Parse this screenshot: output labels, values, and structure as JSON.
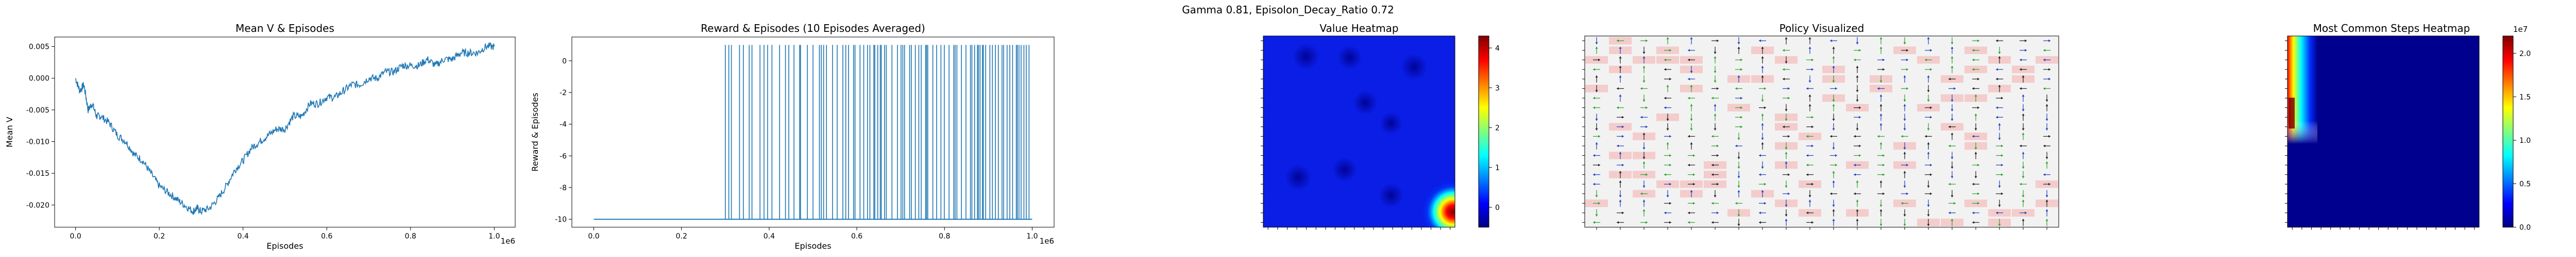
{
  "figure": {
    "suptitle": "Gamma  0.81, Episolon_Decay_Ratio 0.72"
  },
  "colors": {
    "line": "#1f77b4",
    "axes": "#000000",
    "heat_low": "#00007f",
    "heat_high": "#7f0000",
    "policy_highlight": "#f4c2c2",
    "arrow_blue": "#1f3fbf",
    "arrow_black": "#202020",
    "arrow_green": "#2ca02c"
  },
  "chart_data": [
    {
      "type": "line",
      "title": "Mean V & Episodes",
      "xlabel": "Episodes",
      "ylabel": "Mean V",
      "x_scale_label": "1e6",
      "xlim": [
        -0.05,
        1.05
      ],
      "ylim": [
        -0.0235,
        0.0065
      ],
      "xticks": [
        "0.0",
        "0.2",
        "0.4",
        "0.6",
        "0.8",
        "1.0"
      ],
      "yticks": [
        "0.005",
        "0.000",
        "-0.005",
        "-0.010",
        "-0.015",
        "-0.020"
      ],
      "series": [
        {
          "x": [
            0.0,
            0.01,
            0.02,
            0.03,
            0.04,
            0.05,
            0.06,
            0.08,
            0.1,
            0.12,
            0.14,
            0.16,
            0.18,
            0.2,
            0.22,
            0.24,
            0.26,
            0.28,
            0.29,
            0.3,
            0.32,
            0.34,
            0.36,
            0.38,
            0.4,
            0.42,
            0.44,
            0.46,
            0.48,
            0.5,
            0.52,
            0.54,
            0.56,
            0.58,
            0.6,
            0.62,
            0.64,
            0.66,
            0.68,
            0.7,
            0.72,
            0.74,
            0.76,
            0.78,
            0.8,
            0.82,
            0.84,
            0.86,
            0.88,
            0.9,
            0.92,
            0.94,
            0.96,
            0.98,
            1.0
          ],
          "values": [
            0.0,
            -0.002,
            -0.001,
            -0.005,
            -0.004,
            -0.006,
            -0.006,
            -0.007,
            -0.009,
            -0.01,
            -0.012,
            -0.013,
            -0.015,
            -0.017,
            -0.018,
            -0.019,
            -0.02,
            -0.021,
            -0.0205,
            -0.021,
            -0.0205,
            -0.019,
            -0.017,
            -0.0145,
            -0.013,
            -0.011,
            -0.01,
            -0.009,
            -0.008,
            -0.008,
            -0.006,
            -0.006,
            -0.004,
            -0.004,
            -0.003,
            -0.003,
            -0.002,
            -0.001,
            -0.001,
            0.0,
            0.0,
            0.001,
            0.001,
            0.002,
            0.002,
            0.002,
            0.003,
            0.002,
            0.003,
            0.003,
            0.004,
            0.004,
            0.004,
            0.005,
            0.005
          ]
        }
      ]
    },
    {
      "type": "bar",
      "title": "Reward & Episodes (10 Episodes Averaged)",
      "xlabel": "Episodes",
      "ylabel": "Reward & Episodes",
      "x_scale_label": "1e6",
      "xlim": [
        -0.05,
        1.05
      ],
      "ylim": [
        -10.5,
        1.5
      ],
      "xticks": [
        "0.0",
        "0.2",
        "0.4",
        "0.6",
        "0.8",
        "1.0"
      ],
      "yticks": [
        "0",
        "-2",
        "-4",
        "-6",
        "-8",
        "-10"
      ],
      "baseline_value": -10,
      "baseline_range": [
        0.0,
        1.0
      ],
      "spike_value": 1,
      "spike_region": [
        0.3,
        1.0
      ]
    },
    {
      "type": "heatmap",
      "title": "Value Heatmap",
      "colorbar_ticks": [
        "4",
        "3",
        "2",
        "1",
        "0"
      ],
      "colorbar_range": [
        -0.5,
        4.3
      ],
      "hot_spot": "bottom-right",
      "grid_size": 20
    },
    {
      "type": "table",
      "title": "Policy Visualized",
      "grid_size": 20
    },
    {
      "type": "heatmap",
      "title": "Most Common Steps Heatmap",
      "colorbar_ticks": [
        "2.0",
        "1.5",
        "1.0",
        "0.5",
        "0.0"
      ],
      "colorbar_scale_label": "1e7",
      "colorbar_range": [
        0,
        2.2
      ],
      "hot_spot": "top-left column"
    }
  ]
}
